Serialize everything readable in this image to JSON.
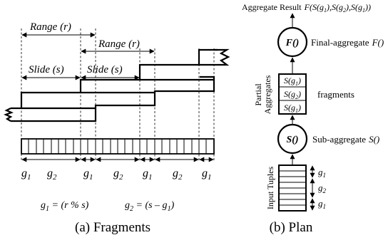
{
  "fragments": {
    "range1": "Range (r)",
    "range2": "Range (r)",
    "slide1": "Slide (s)",
    "slide2": "Slide (s)",
    "seg_labels": [
      {
        "base": "g",
        "sub": "1"
      },
      {
        "base": "g",
        "sub": "2"
      },
      {
        "base": "g",
        "sub": "1"
      },
      {
        "base": "g",
        "sub": "2"
      },
      {
        "base": "g",
        "sub": "1"
      },
      {
        "base": "g",
        "sub": "2"
      },
      {
        "base": "g",
        "sub": "1"
      }
    ],
    "formula1": {
      "base": "g",
      "sub": "1",
      "rest": " = (r % s)"
    },
    "formula2": {
      "base": "g",
      "sub": "2",
      "rest": " = (s – g",
      "sub2": "1",
      "rest2": ")"
    },
    "caption": "(a) Fragments"
  },
  "plan": {
    "result_label": "Aggregate Result",
    "result_formula": "F(S(g1),S(g2),S(g1))",
    "final_node": "F()",
    "final_label": "Final-aggregate",
    "final_fn": "F()",
    "partial_label_line1": "Partial",
    "partial_label_line2": "Aggregates",
    "fragments_cells": [
      {
        "base": "S(g",
        "sub": "1",
        "rest": ")"
      },
      {
        "base": "S(g",
        "sub": "2",
        "rest": ")"
      },
      {
        "base": "S(g",
        "sub": "1",
        "rest": ")"
      }
    ],
    "fragments_label": "fragments",
    "sub_node": "S()",
    "sub_label": "Sub-aggregate",
    "sub_fn": "S()",
    "input_label": "Input Tuples",
    "input_groups": [
      {
        "base": "g",
        "sub": "1"
      },
      {
        "base": "g",
        "sub": "2"
      },
      {
        "base": "g",
        "sub": "1"
      }
    ],
    "caption": "(b) Plan"
  }
}
